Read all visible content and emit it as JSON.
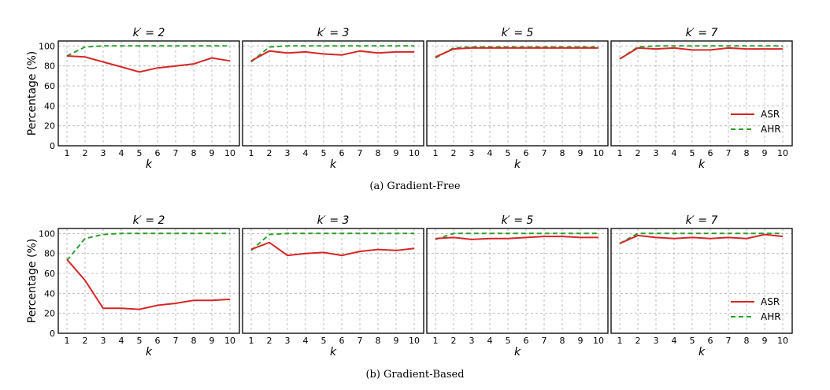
{
  "rows": [
    {
      "caption": "(a) Gradient-Free",
      "ylabel": "Percentage (%)",
      "xlabel": "k",
      "panels": [
        {
          "title": "k′ = 2",
          "asr": [
            90,
            89,
            84,
            79,
            74,
            78,
            80,
            82,
            88,
            85
          ],
          "ahr": [
            90,
            99,
            100,
            100,
            100,
            100,
            100,
            100,
            100,
            100
          ]
        },
        {
          "title": "k′ = 3",
          "asr": [
            85,
            95,
            93,
            94,
            92,
            91,
            95,
            93,
            94,
            94
          ],
          "ahr": [
            84,
            99,
            100,
            100,
            100,
            100,
            100,
            100,
            100,
            100
          ]
        },
        {
          "title": "k′ = 5",
          "asr": [
            89,
            97,
            98,
            98,
            98,
            98,
            98,
            98,
            98,
            98
          ],
          "ahr": [
            88,
            98,
            99,
            99,
            99,
            99,
            99,
            99,
            99,
            99
          ]
        },
        {
          "title": "k′ = 7",
          "asr": [
            87,
            98,
            97,
            98,
            96,
            96,
            98,
            97,
            97,
            97
          ],
          "ahr": [
            87,
            99,
            100,
            100,
            100,
            100,
            100,
            100,
            100,
            100
          ]
        }
      ]
    },
    {
      "caption": "(b) Gradient-Based",
      "ylabel": "Percentage (%)",
      "xlabel": "k",
      "panels": [
        {
          "title": "k′ = 2",
          "asr": [
            74,
            53,
            25,
            25,
            24,
            28,
            30,
            33,
            33,
            34
          ],
          "ahr": [
            73,
            95,
            99,
            100,
            100,
            100,
            100,
            100,
            100,
            100
          ]
        },
        {
          "title": "k′ = 3",
          "asr": [
            84,
            91,
            78,
            80,
            81,
            78,
            82,
            84,
            83,
            85
          ],
          "ahr": [
            83,
            99,
            100,
            100,
            100,
            100,
            100,
            100,
            100,
            100
          ]
        },
        {
          "title": "k′ = 5",
          "asr": [
            95,
            96,
            94,
            95,
            95,
            96,
            97,
            97,
            96,
            96
          ],
          "ahr": [
            94,
            100,
            100,
            100,
            100,
            100,
            100,
            100,
            100,
            100
          ]
        },
        {
          "title": "k′ = 7",
          "asr": [
            90,
            98,
            96,
            95,
            96,
            95,
            96,
            95,
            99,
            97
          ],
          "ahr": [
            90,
            100,
            100,
            100,
            100,
            100,
            100,
            100,
            100,
            100
          ]
        }
      ]
    }
  ],
  "chart_data": [
    {
      "type": "line",
      "title": "k′ = 2",
      "group": "(a) Gradient-Free",
      "xlabel": "k",
      "ylabel": "Percentage (%)",
      "x": [
        1,
        2,
        3,
        4,
        5,
        6,
        7,
        8,
        9,
        10
      ],
      "ylim": [
        0,
        105
      ],
      "grid": true,
      "series": [
        {
          "name": "ASR",
          "values": [
            90,
            89,
            84,
            79,
            74,
            78,
            80,
            82,
            88,
            85
          ]
        },
        {
          "name": "AHR",
          "values": [
            90,
            99,
            100,
            100,
            100,
            100,
            100,
            100,
            100,
            100
          ]
        }
      ]
    },
    {
      "type": "line",
      "title": "k′ = 3",
      "group": "(a) Gradient-Free",
      "xlabel": "k",
      "x": [
        1,
        2,
        3,
        4,
        5,
        6,
        7,
        8,
        9,
        10
      ],
      "ylim": [
        0,
        105
      ],
      "grid": true,
      "series": [
        {
          "name": "ASR",
          "values": [
            85,
            95,
            93,
            94,
            92,
            91,
            95,
            93,
            94,
            94
          ]
        },
        {
          "name": "AHR",
          "values": [
            84,
            99,
            100,
            100,
            100,
            100,
            100,
            100,
            100,
            100
          ]
        }
      ]
    },
    {
      "type": "line",
      "title": "k′ = 5",
      "group": "(a) Gradient-Free",
      "xlabel": "k",
      "x": [
        1,
        2,
        3,
        4,
        5,
        6,
        7,
        8,
        9,
        10
      ],
      "ylim": [
        0,
        105
      ],
      "grid": true,
      "series": [
        {
          "name": "ASR",
          "values": [
            89,
            97,
            98,
            98,
            98,
            98,
            98,
            98,
            98,
            98
          ]
        },
        {
          "name": "AHR",
          "values": [
            88,
            98,
            99,
            99,
            99,
            99,
            99,
            99,
            99,
            99
          ]
        }
      ]
    },
    {
      "type": "line",
      "title": "k′ = 7",
      "group": "(a) Gradient-Free",
      "xlabel": "k",
      "x": [
        1,
        2,
        3,
        4,
        5,
        6,
        7,
        8,
        9,
        10
      ],
      "ylim": [
        0,
        105
      ],
      "grid": true,
      "legend": "lower-right",
      "series": [
        {
          "name": "ASR",
          "values": [
            87,
            98,
            97,
            98,
            96,
            96,
            98,
            97,
            97,
            97
          ]
        },
        {
          "name": "AHR",
          "values": [
            87,
            99,
            100,
            100,
            100,
            100,
            100,
            100,
            100,
            100
          ]
        }
      ]
    },
    {
      "type": "line",
      "title": "k′ = 2",
      "group": "(b) Gradient-Based",
      "xlabel": "k",
      "ylabel": "Percentage (%)",
      "x": [
        1,
        2,
        3,
        4,
        5,
        6,
        7,
        8,
        9,
        10
      ],
      "ylim": [
        0,
        105
      ],
      "grid": true,
      "series": [
        {
          "name": "ASR",
          "values": [
            74,
            53,
            25,
            25,
            24,
            28,
            30,
            33,
            33,
            34
          ]
        },
        {
          "name": "AHR",
          "values": [
            73,
            95,
            99,
            100,
            100,
            100,
            100,
            100,
            100,
            100
          ]
        }
      ]
    },
    {
      "type": "line",
      "title": "k′ = 3",
      "group": "(b) Gradient-Based",
      "xlabel": "k",
      "x": [
        1,
        2,
        3,
        4,
        5,
        6,
        7,
        8,
        9,
        10
      ],
      "ylim": [
        0,
        105
      ],
      "grid": true,
      "series": [
        {
          "name": "ASR",
          "values": [
            84,
            91,
            78,
            80,
            81,
            78,
            82,
            84,
            83,
            85
          ]
        },
        {
          "name": "AHR",
          "values": [
            83,
            99,
            100,
            100,
            100,
            100,
            100,
            100,
            100,
            100
          ]
        }
      ]
    },
    {
      "type": "line",
      "title": "k′ = 5",
      "group": "(b) Gradient-Based",
      "xlabel": "k",
      "x": [
        1,
        2,
        3,
        4,
        5,
        6,
        7,
        8,
        9,
        10
      ],
      "ylim": [
        0,
        105
      ],
      "grid": true,
      "series": [
        {
          "name": "ASR",
          "values": [
            95,
            96,
            94,
            95,
            95,
            96,
            97,
            97,
            96,
            96
          ]
        },
        {
          "name": "AHR",
          "values": [
            94,
            100,
            100,
            100,
            100,
            100,
            100,
            100,
            100,
            100
          ]
        }
      ]
    },
    {
      "type": "line",
      "title": "k′ = 7",
      "group": "(b) Gradient-Based",
      "xlabel": "k",
      "x": [
        1,
        2,
        3,
        4,
        5,
        6,
        7,
        8,
        9,
        10
      ],
      "ylim": [
        0,
        105
      ],
      "grid": true,
      "legend": "lower-right",
      "series": [
        {
          "name": "ASR",
          "values": [
            90,
            98,
            96,
            95,
            96,
            95,
            96,
            95,
            99,
            97
          ]
        },
        {
          "name": "AHR",
          "values": [
            90,
            100,
            100,
            100,
            100,
            100,
            100,
            100,
            100,
            100
          ]
        }
      ]
    }
  ],
  "axes": {
    "x_ticks": [
      "1",
      "2",
      "3",
      "4",
      "5",
      "6",
      "7",
      "8",
      "9",
      "10"
    ],
    "y_ticks": [
      "0",
      "20",
      "40",
      "60",
      "80",
      "100"
    ],
    "y_values": [
      0,
      20,
      40,
      60,
      80,
      100
    ],
    "ylim": [
      0,
      105
    ]
  },
  "legend": [
    {
      "name": "ASR",
      "color": "#d62728",
      "dash": "solid"
    },
    {
      "name": "AHR",
      "color": "#2ca02c",
      "dash": "dashed"
    }
  ],
  "style": {
    "grid_color": "#b0b0b0",
    "axis_color": "#000000"
  }
}
